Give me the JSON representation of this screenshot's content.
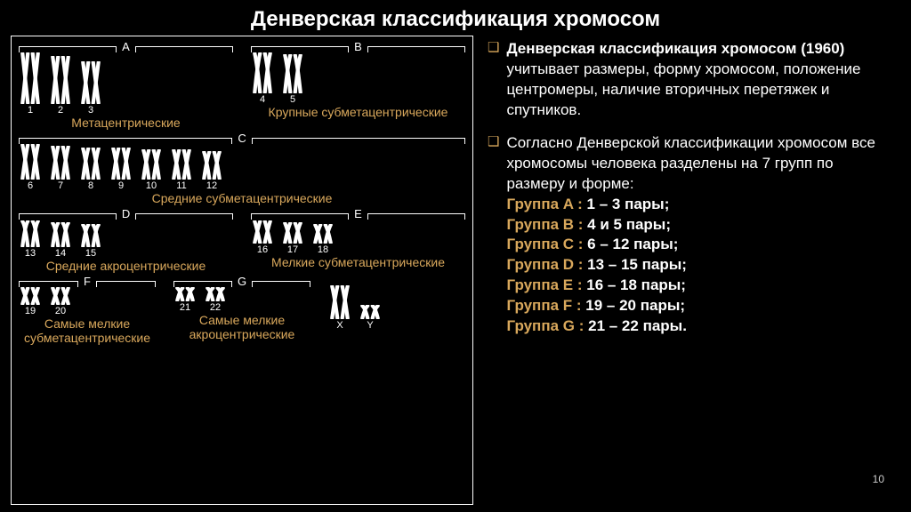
{
  "title": "Денверская классификация хромосом",
  "page_number": "10",
  "colors": {
    "bg": "#000000",
    "text": "#ffffff",
    "accent": "#d9a85c",
    "chrom_stroke": "#ffffff"
  },
  "text_panel": {
    "para1_lead": "Денверская классификация хромосом (1960)",
    "para1_rest": " учитывает размеры, форму хромосом, положение центромеры, наличие вторичных перетяжек и спутников.",
    "para2_lead": "Согласно Денверской классификации хромосом все хромосомы человека разделены на 7 групп по размеру и форме:",
    "groups": [
      {
        "label": "Группа A",
        "range": "1 – 3 пары;"
      },
      {
        "label": "Группа B",
        "range": "4 и 5 пары;"
      },
      {
        "label": "Группа C",
        "range": "6 – 12 пары;"
      },
      {
        "label": "Группа D",
        "range": "13 – 15 пары;"
      },
      {
        "label": "Группа E",
        "range": "16 – 18 пары;"
      },
      {
        "label": "Группа F",
        "range": "19 – 20 пары;"
      },
      {
        "label": "Группа G",
        "range": "21 – 22 пары."
      }
    ]
  },
  "diagram": {
    "rows": [
      {
        "subgroups": [
          {
            "letter": "A",
            "label": "Метацентрические",
            "pairs": [
              {
                "num": "1",
                "h": 58,
                "ci": 0.5
              },
              {
                "num": "2",
                "h": 54,
                "ci": 0.42
              },
              {
                "num": "3",
                "h": 48,
                "ci": 0.5
              }
            ]
          },
          {
            "letter": "B",
            "label": "Крупные субметацентрические",
            "pairs": [
              {
                "num": "4",
                "h": 46,
                "ci": 0.32
              },
              {
                "num": "5",
                "h": 44,
                "ci": 0.32
              }
            ]
          }
        ]
      },
      {
        "subgroups": [
          {
            "letter": "C",
            "label": "Средние субметацентрические",
            "pairs": [
              {
                "num": "6",
                "h": 40,
                "ci": 0.38
              },
              {
                "num": "7",
                "h": 38,
                "ci": 0.36
              },
              {
                "num": "8",
                "h": 36,
                "ci": 0.35
              },
              {
                "num": "9",
                "h": 36,
                "ci": 0.36
              },
              {
                "num": "10",
                "h": 34,
                "ci": 0.34
              },
              {
                "num": "11",
                "h": 34,
                "ci": 0.4
              },
              {
                "num": "12",
                "h": 32,
                "ci": 0.32
              }
            ]
          }
        ]
      },
      {
        "subgroups": [
          {
            "letter": "D",
            "label": "Средние акроцентрические",
            "pairs": [
              {
                "num": "13",
                "h": 30,
                "ci": 0.18
              },
              {
                "num": "14",
                "h": 28,
                "ci": 0.18
              },
              {
                "num": "15",
                "h": 26,
                "ci": 0.18
              }
            ]
          },
          {
            "letter": "E",
            "label": "Мелкие субметацентрические",
            "pairs": [
              {
                "num": "16",
                "h": 26,
                "ci": 0.42
              },
              {
                "num": "17",
                "h": 24,
                "ci": 0.32
              },
              {
                "num": "18",
                "h": 22,
                "ci": 0.3
              }
            ]
          }
        ]
      },
      {
        "subgroups": [
          {
            "letter": "F",
            "label": "Самые мелкие субметацентрические",
            "pairs": [
              {
                "num": "19",
                "h": 20,
                "ci": 0.46
              },
              {
                "num": "20",
                "h": 20,
                "ci": 0.45
              }
            ]
          },
          {
            "letter": "G",
            "label": "Самые мелкие акроцентрические",
            "pairs": [
              {
                "num": "21",
                "h": 16,
                "ci": 0.2
              },
              {
                "num": "22",
                "h": 16,
                "ci": 0.2
              }
            ]
          },
          {
            "letter": "",
            "label": "",
            "pairs": [
              {
                "num": "X",
                "h": 38,
                "ci": 0.38
              },
              {
                "num": "Y",
                "h": 16,
                "ci": 0.2
              }
            ]
          }
        ]
      }
    ]
  }
}
